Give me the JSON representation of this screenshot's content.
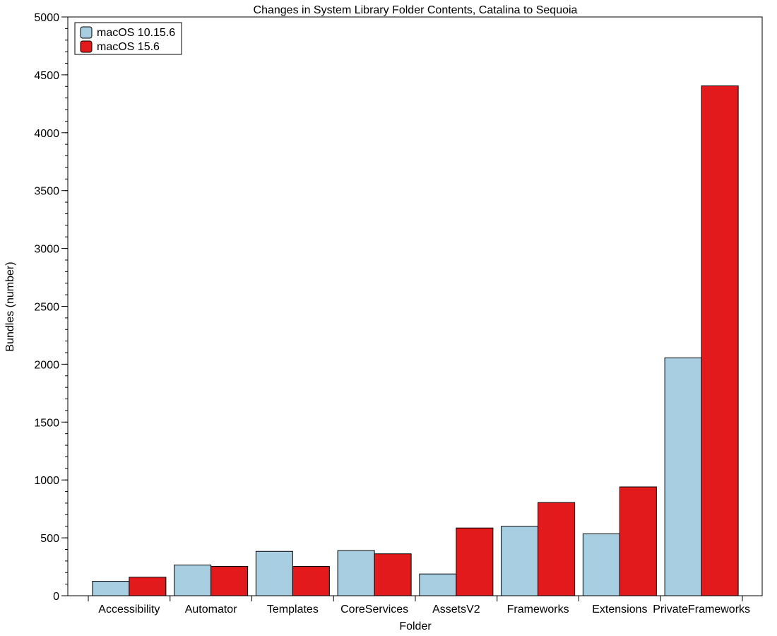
{
  "chart_data": {
    "type": "bar",
    "title": "Changes in System Library Folder Contents, Catalina to Sequoia",
    "xlabel": "Folder",
    "ylabel": "Bundles (number)",
    "ylim": [
      0,
      5000
    ],
    "yticks": [
      "0",
      "500",
      "1000",
      "1500",
      "2000",
      "2500",
      "3000",
      "3500",
      "4000",
      "4500",
      "5000"
    ],
    "minor_tick_step": 100,
    "grid": false,
    "legend_position": "top-left",
    "categories": [
      "Accessibility",
      "Automator",
      "Templates",
      "CoreServices",
      "AssetsV2",
      "Frameworks",
      "Extensions",
      "PrivateFrameworks"
    ],
    "series": [
      {
        "name": "macOS 10.15.6",
        "color": "#a8cee2",
        "values": [
          125,
          265,
          383,
          390,
          188,
          600,
          535,
          2055
        ]
      },
      {
        "name": "macOS 15.6",
        "color": "#e31a1c",
        "values": [
          160,
          253,
          253,
          362,
          585,
          805,
          940,
          4405
        ]
      }
    ]
  }
}
